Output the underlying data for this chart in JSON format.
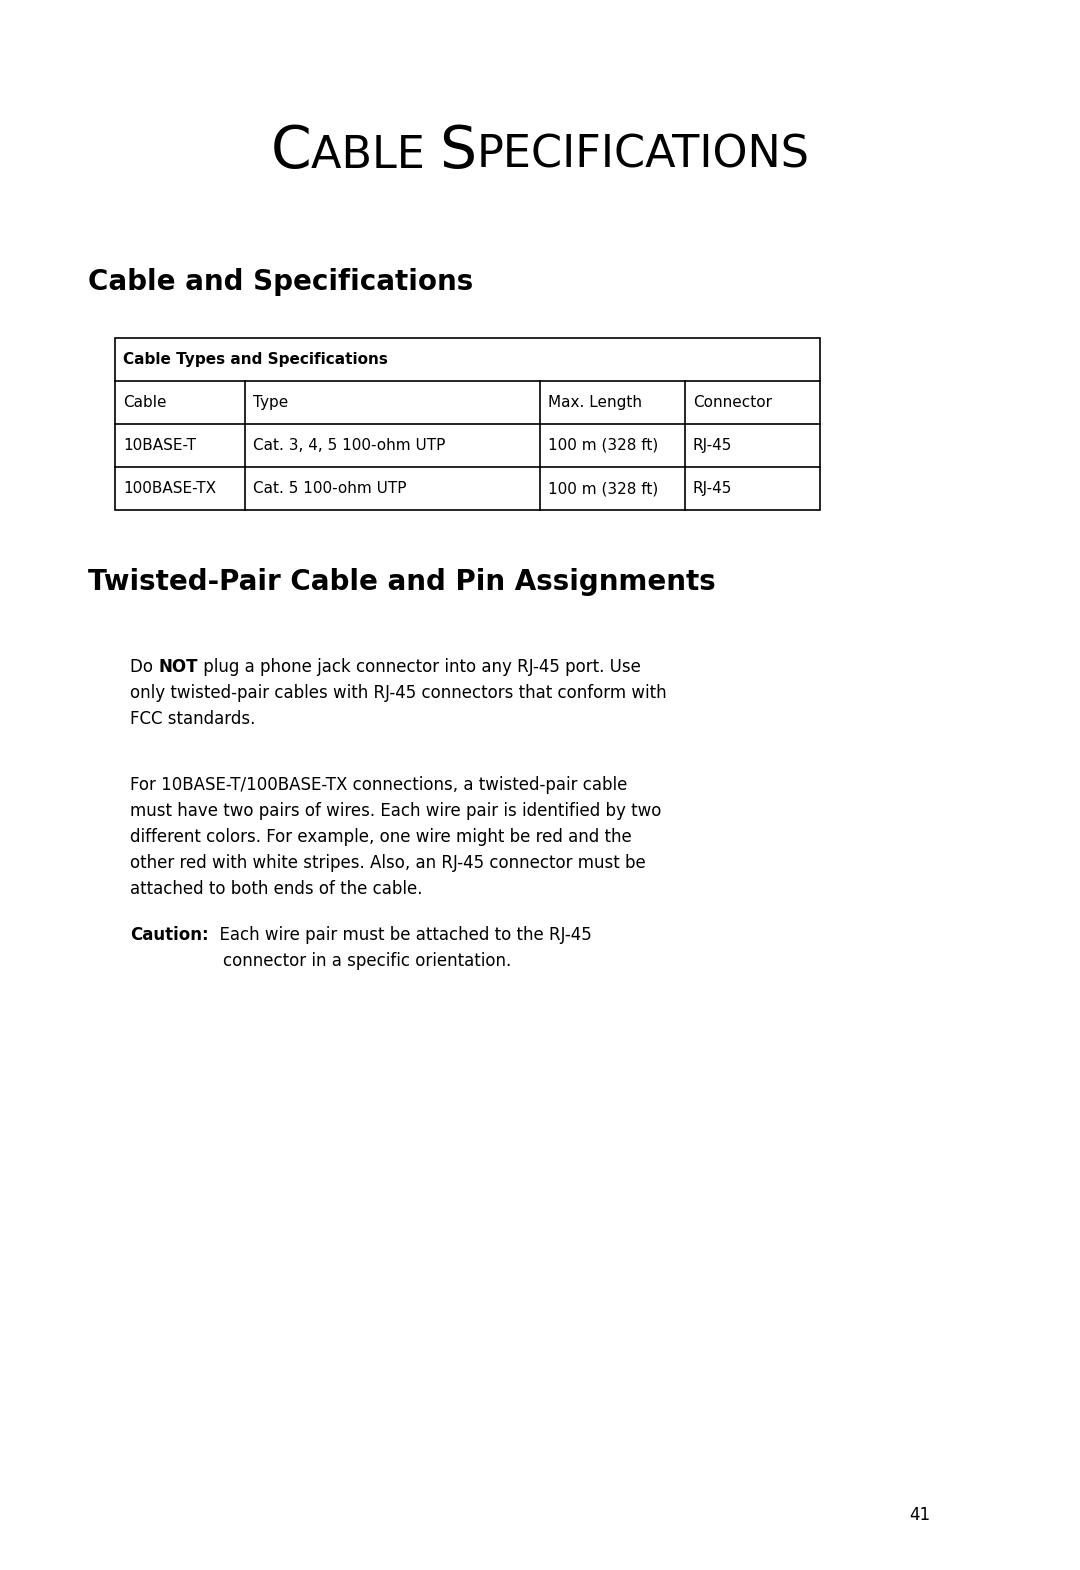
{
  "bg_color": "#ffffff",
  "page_number": "41",
  "main_title_small": "ABLE ",
  "main_title_big1": "C",
  "main_title_small2": "PECIFICATIONS",
  "main_title_big2": "S",
  "section1_title": "Cable and Specifications",
  "section2_title": "Twisted-Pair Cable and Pin Assignments",
  "table_header": "Cable Types and Specifications",
  "table_col_headers": [
    "Cable",
    "Type",
    "Max. Length",
    "Connector"
  ],
  "table_rows": [
    [
      "10BASE-T",
      "Cat. 3, 4, 5 100-ohm UTP",
      "100 m (328 ft)",
      "RJ-45"
    ],
    [
      "100BASE-TX",
      "Cat. 5 100-ohm UTP",
      "100 m (328 ft)",
      "RJ-45"
    ]
  ],
  "para1_line1_pre": "Do ",
  "para1_line1_bold": "NOT",
  "para1_line1_post": " plug a phone jack connector into any RJ-45 port. Use",
  "para1_line2": "only twisted-pair cables with RJ-45 connectors that conform with",
  "para1_line3": "FCC standards.",
  "para2_lines": [
    "For 10BASE-T/100BASE-TX connections, a twisted-pair cable",
    "must have two pairs of wires. Each wire pair is identified by two",
    "different colors. For example, one wire might be red and the",
    "other red with white stripes. Also, an RJ-45 connector must be",
    "attached to both ends of the cable."
  ],
  "caution_label": "Caution:",
  "caution_line1": "  Each wire pair must be attached to the RJ-45",
  "caution_line2": "connector in a specific orientation."
}
